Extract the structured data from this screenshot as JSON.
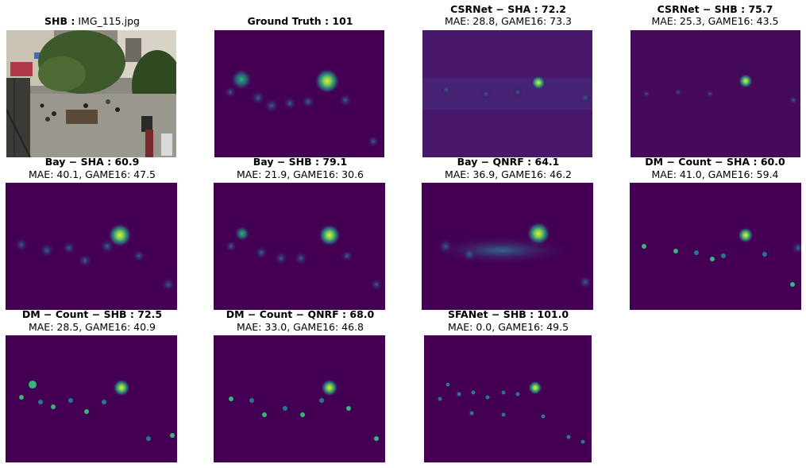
{
  "colors": {
    "viridis_dark": "#440154",
    "viridis_mid": "#21918c",
    "viridis_light": "#5ec962",
    "viridis_yellow": "#fde725"
  },
  "panels": [
    {
      "id": "input",
      "title_bold": "SHB :",
      "title_rest": " IMG_115.jpg",
      "subtitle": ""
    },
    {
      "id": "gt",
      "title_bold": "Ground Truth : 101",
      "title_rest": "",
      "subtitle": ""
    },
    {
      "id": "csr-sha",
      "title_bold": "CSRNet − SHA : 72.2",
      "title_rest": "",
      "subtitle": "MAE: 28.8, GAME16: 73.3"
    },
    {
      "id": "csr-shb",
      "title_bold": "CSRNet − SHB : 75.7",
      "title_rest": "",
      "subtitle": "MAE: 25.3, GAME16: 43.5"
    },
    {
      "id": "bay-sha",
      "title_bold": "Bay − SHA : 60.9",
      "title_rest": "",
      "subtitle": "MAE: 40.1, GAME16: 47.5"
    },
    {
      "id": "bay-shb",
      "title_bold": "Bay − SHB : 79.1",
      "title_rest": "",
      "subtitle": "MAE: 21.9, GAME16: 30.6"
    },
    {
      "id": "bay-qnrf",
      "title_bold": "Bay − QNRF : 64.1",
      "title_rest": "",
      "subtitle": "MAE: 36.9, GAME16: 46.2"
    },
    {
      "id": "dm-sha",
      "title_bold": "DM − Count − SHA : 60.0",
      "title_rest": "",
      "subtitle": "MAE: 41.0, GAME16: 59.4"
    },
    {
      "id": "dm-shb",
      "title_bold": "DM − Count − SHB : 72.5",
      "title_rest": "",
      "subtitle": "MAE: 28.5, GAME16: 40.9"
    },
    {
      "id": "dm-qnrf",
      "title_bold": "DM − Count − QNRF : 68.0",
      "title_rest": "",
      "subtitle": "MAE: 33.0, GAME16: 46.8"
    },
    {
      "id": "sfa-shb",
      "title_bold": "SFANet − SHB : 101.0",
      "title_rest": "",
      "subtitle": "MAE: 0.0, GAME16: 49.5"
    }
  ]
}
